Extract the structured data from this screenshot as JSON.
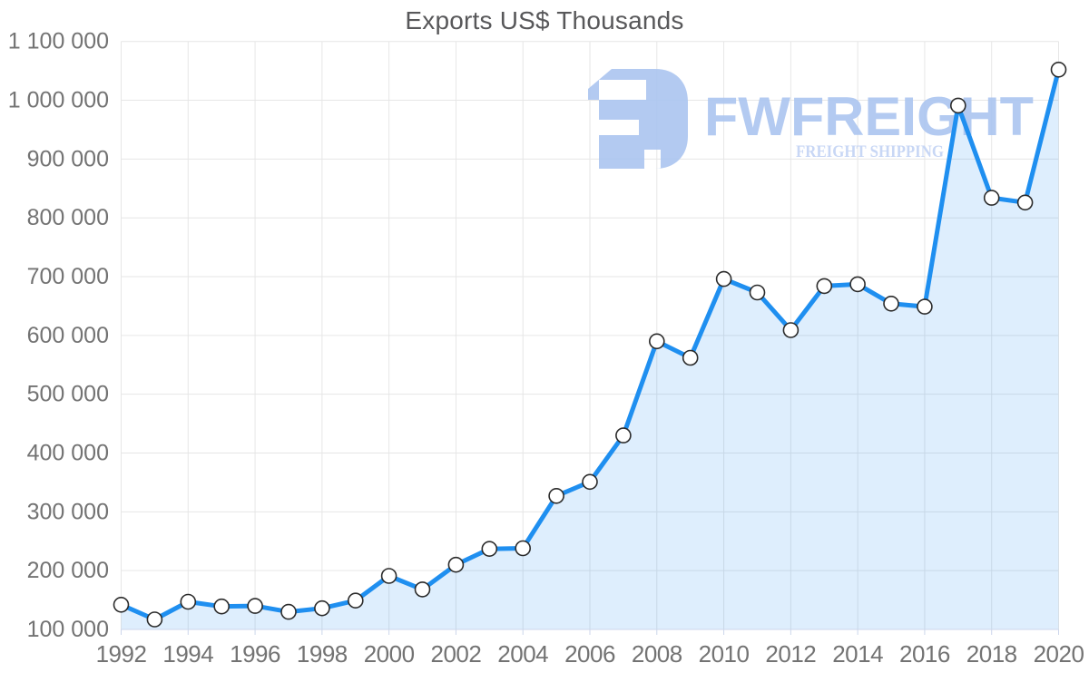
{
  "title": "Exports US$ Thousands",
  "watermark": {
    "brand": "FWFREIGHT",
    "tagline": "FREIGHT SHIPPING",
    "logo_color": "#abc5f0",
    "tagline_color": "#c3d3f4"
  },
  "colors": {
    "line": "#1f8ff0",
    "area_fill": "rgba(31,143,240,0.15)",
    "marker_fill": "#ffffff",
    "marker_stroke": "#2b2b2b",
    "grid": "#e6e6e6",
    "axis": "#ccd6eb",
    "tick_label": "#737373",
    "title_color": "#58585a"
  },
  "chart_data": {
    "type": "area",
    "title": "Exports US$ Thousands",
    "xlabel": "",
    "ylabel": "",
    "x": [
      1992,
      1993,
      1994,
      1995,
      1996,
      1997,
      1998,
      1999,
      2000,
      2001,
      2002,
      2003,
      2004,
      2005,
      2006,
      2007,
      2008,
      2009,
      2010,
      2011,
      2012,
      2013,
      2014,
      2015,
      2016,
      2017,
      2018,
      2019,
      2020
    ],
    "values": [
      142000,
      117000,
      147000,
      139000,
      140000,
      130000,
      136000,
      149000,
      191000,
      168000,
      210000,
      237000,
      238000,
      327000,
      351000,
      430000,
      590000,
      562000,
      696000,
      673000,
      609000,
      684000,
      687000,
      654000,
      649000,
      991000,
      834000,
      826000,
      1052000
    ],
    "ylim": [
      100000,
      1100000
    ],
    "ytick_step": 100000,
    "ytick_labels": [
      "100 000",
      "200 000",
      "300 000",
      "400 000",
      "500 000",
      "600 000",
      "700 000",
      "800 000",
      "900 000",
      "1 000 000",
      "1 100 000"
    ],
    "xtick_labels": [
      "1992",
      "1994",
      "1996",
      "1998",
      "2000",
      "2002",
      "2004",
      "2006",
      "2008",
      "2010",
      "2012",
      "2014",
      "2016",
      "2018",
      "2020"
    ],
    "grid": true,
    "legend": false,
    "marker": "circle",
    "series_name": "Exports US$ Thousands"
  }
}
